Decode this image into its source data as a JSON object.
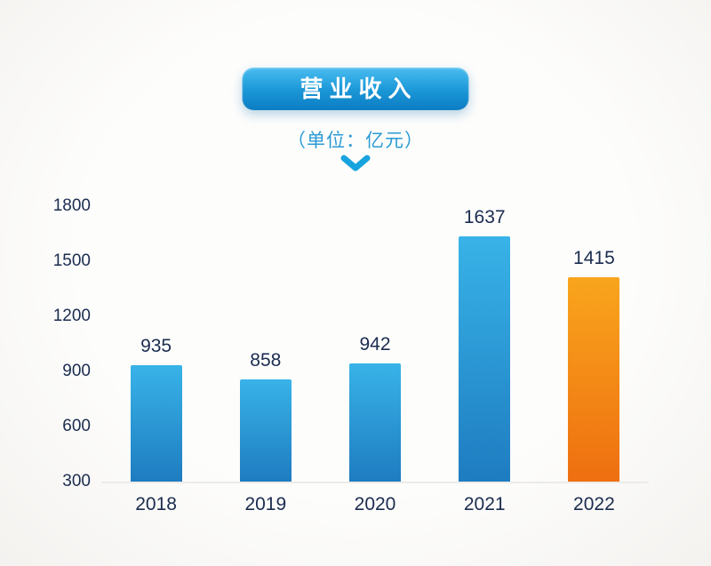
{
  "page": {
    "background_color": "#fbfaf8"
  },
  "header": {
    "title": "营业收入",
    "subtitle": "（单位：亿元）",
    "title_pill_colors": {
      "top": "#49bdf0",
      "mid": "#1a96d6",
      "bottom": "#0c7cc3"
    },
    "subtitle_color": "#2b9ad4",
    "chevron_color": "#17a3de"
  },
  "chart_data": {
    "type": "bar",
    "title": "营业收入",
    "subtitle": "（单位：亿元）",
    "categories": [
      "2018",
      "2019",
      "2020",
      "2021",
      "2022"
    ],
    "values": [
      935,
      858,
      942,
      1637,
      1415
    ],
    "value_labels": [
      "935",
      "858",
      "942",
      "1637",
      "1415"
    ],
    "xlabel": "",
    "ylabel": "",
    "ylim": [
      300,
      1800
    ],
    "yticks": [
      1800,
      1500,
      1200,
      900,
      600,
      300
    ],
    "grid": false,
    "legend": "none",
    "axis_text_color": "#1b2c4f",
    "bar_gradients": [
      {
        "top": "#38b3e8",
        "bottom": "#1e7cc0"
      },
      {
        "top": "#38b3e8",
        "bottom": "#1e7cc0"
      },
      {
        "top": "#38b3e8",
        "bottom": "#1e7cc0"
      },
      {
        "top": "#38b3e8",
        "bottom": "#1e7cc0"
      },
      {
        "top": "#f9a51d",
        "bottom": "#ee6f10"
      }
    ]
  }
}
